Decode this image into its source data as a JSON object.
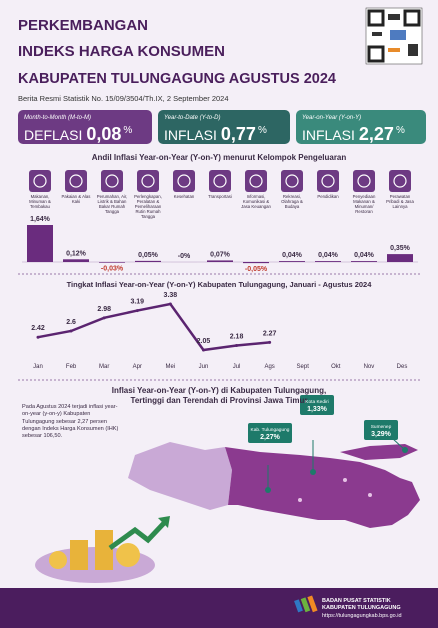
{
  "header": {
    "title_lines": [
      "PERKEMBANGAN",
      "INDEKS HARGA KONSUMEN",
      "KABUPATEN TULUNGAGUNG AGUSTUS 2024"
    ],
    "subtitle": "Berita Resmi Statistik No. 15/09/3504/Th.IX, 2 September 2024"
  },
  "stats": [
    {
      "label": "Month-to-Month (M-to-M)",
      "word": "DEFLASI",
      "value": "0,08",
      "unit": "%"
    },
    {
      "label": "Year-to-Date (Y-to-D)",
      "word": "INFLASI",
      "value": "0,77",
      "unit": "%"
    },
    {
      "label": "Year-on-Year (Y-on-Y)",
      "word": "INFLASI",
      "value": "2,27",
      "unit": "%"
    }
  ],
  "chart_data": [
    {
      "type": "bar",
      "title": "Andil Inflasi Year-on-Year (Y-on-Y) menurut Kelompok Pengeluaran",
      "color": "#6a2c7e",
      "categories": [
        "Makanan, Minuman & Tembakau",
        "Pakaian & Alas Kaki",
        "Perumahan, Air, Listrik & Bahan Bakar Rumah Tangga",
        "Perlengkapan, Peralatan & Pemeliharaan Rutin Rumah Tangga",
        "Kesehatan",
        "Transportasi",
        "Informasi, Komunikasi & Jasa Keuangan",
        "Rekreasi, Olahraga & Budaya",
        "Pendidikan",
        "Penyediaan Makanan & Minuman/ Restoran",
        "Perawatan Pribadi & Jasa Lainnya"
      ],
      "values": [
        1.64,
        0.12,
        -0.03,
        0.05,
        0,
        0.07,
        -0.05,
        0.04,
        0.04,
        0.04,
        0.35
      ],
      "value_labels": [
        "1,64%",
        "0,12%",
        "-0,03%",
        "0,05%",
        "-0%",
        "0,07%",
        "-0,05%",
        "0,04%",
        "0,04%",
        "0,04%",
        "0,35%"
      ]
    },
    {
      "type": "line",
      "title": "Tingkat Inflasi Year-on-Year (Y-on-Y) Kabupaten Tulungagung, Januari - Agustus 2024",
      "color": "#5b2470",
      "categories": [
        "Jan",
        "Feb",
        "Mar",
        "Apr",
        "Mei",
        "Jun",
        "Jul",
        "Ags",
        "Sept",
        "Okt",
        "Nov",
        "Des"
      ],
      "values": [
        2.42,
        2.6,
        2.98,
        3.19,
        3.38,
        2.05,
        2.18,
        2.27,
        null,
        null,
        null,
        null
      ]
    }
  ],
  "map": {
    "title_lines": [
      "Inflasi Year-on-Year (Y-on-Y) di Kabupaten Tulungagung,",
      "Tertinggi dan Terendah di Provinsi Jawa Timur"
    ],
    "note": "Pada Agustus 2024 terjadi inflasi year-on-year (y-on-y) Kabupaten Tulungagung sebesar 2,27 persen dengan Indeks Harga Konsumen (IHK) sebesar 106,50.",
    "callouts": [
      {
        "name": "Kab. Tulungagung",
        "value": "2,27%"
      },
      {
        "name": "Kota Kediri",
        "value": "1,33%"
      },
      {
        "name": "Sumenep",
        "value": "3,29%"
      }
    ]
  },
  "footer": {
    "org_lines": [
      "BADAN PUSAT STATISTIK",
      "KABUPATEN TULUNGAGUNG"
    ],
    "url": "https://tulungagungkab.bps.go.id"
  }
}
